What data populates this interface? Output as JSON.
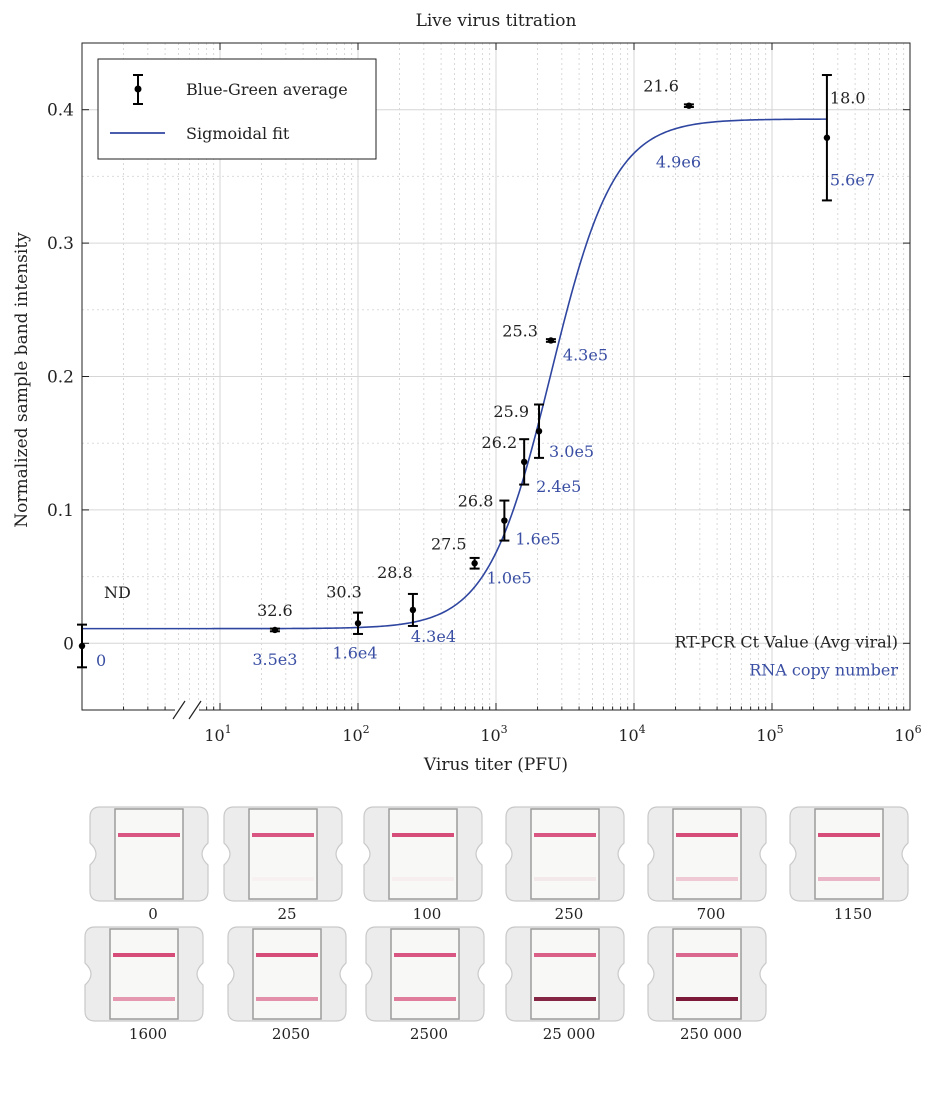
{
  "chart_data": {
    "type": "scatter",
    "title": "Live virus titration",
    "xlabel": "Virus titer (PFU)",
    "ylabel": "Normalized sample band intensity",
    "x_scale": "log",
    "xlim": [
      1,
      1000000
    ],
    "ylim": [
      -0.05,
      0.45
    ],
    "x_axis_break": true,
    "grid": true,
    "x_ticks": [
      {
        "value": 10,
        "base": "10",
        "exp": "1"
      },
      {
        "value": 100,
        "base": "10",
        "exp": "2"
      },
      {
        "value": 1000,
        "base": "10",
        "exp": "3"
      },
      {
        "value": 10000,
        "base": "10",
        "exp": "4"
      },
      {
        "value": 100000,
        "base": "10",
        "exp": "5"
      },
      {
        "value": 1000000,
        "base": "10",
        "exp": "6"
      }
    ],
    "y_ticks": [
      {
        "value": 0,
        "label": "0"
      },
      {
        "value": 0.1,
        "label": "0.1"
      },
      {
        "value": 0.2,
        "label": "0.2"
      },
      {
        "value": 0.3,
        "label": "0.3"
      },
      {
        "value": 0.4,
        "label": "0.4"
      }
    ],
    "legend": {
      "placement": "top-left",
      "entries": [
        {
          "label": "Blue-Green average",
          "marker": "errorbar-point"
        },
        {
          "label": "Sigmoidal fit",
          "marker": "line"
        }
      ]
    },
    "series": [
      {
        "name": "Blue-Green average",
        "points": [
          {
            "x": 1,
            "y": -0.002,
            "err": 0.016,
            "ct": "ND",
            "rna": "0"
          },
          {
            "x": 25,
            "y": 0.01,
            "err": 0.001,
            "ct": "32.6",
            "rna": "3.5e3"
          },
          {
            "x": 100,
            "y": 0.015,
            "err": 0.008,
            "ct": "30.3",
            "rna": "1.6e4"
          },
          {
            "x": 250,
            "y": 0.025,
            "err": 0.012,
            "ct": "28.8",
            "rna": "4.3e4"
          },
          {
            "x": 700,
            "y": 0.06,
            "err": 0.004,
            "ct": "27.5",
            "rna": "1.0e5"
          },
          {
            "x": 1150,
            "y": 0.092,
            "err": 0.015,
            "ct": "26.8",
            "rna": "1.6e5"
          },
          {
            "x": 1600,
            "y": 0.136,
            "err": 0.017,
            "ct": "26.2",
            "rna": "2.4e5"
          },
          {
            "x": 2050,
            "y": 0.159,
            "err": 0.02,
            "ct": "25.9",
            "rna": "3.0e5"
          },
          {
            "x": 2500,
            "y": 0.227,
            "err": 0.001,
            "ct": "25.3",
            "rna": "4.3e5"
          },
          {
            "x": 25000,
            "y": 0.403,
            "err": 0.001,
            "ct": "21.6",
            "rna": "4.9e6"
          },
          {
            "x": 250000,
            "y": 0.379,
            "err": 0.047,
            "ct": "18.0",
            "rna": "5.6e7"
          }
        ]
      },
      {
        "name": "Sigmoidal fit",
        "model": "logistic in log10(x)",
        "bottom": 0.011,
        "top": 0.393,
        "x50": 2500,
        "slope": 1.9
      }
    ],
    "annotations": [
      {
        "text": "RT-PCR Ct Value (Avg viral)",
        "color": "#222222"
      },
      {
        "text": "RNA copy number",
        "color": "#3a4fa3"
      }
    ],
    "colors": {
      "data": "#000000",
      "fit": "#2f46a0",
      "rna_text": "#3a4fa3"
    }
  },
  "strips": [
    {
      "label": "0",
      "t_line": 0.0,
      "c_line": 0.85
    },
    {
      "label": "25",
      "t_line": 0.03,
      "c_line": 0.85
    },
    {
      "label": "100",
      "t_line": 0.05,
      "c_line": 0.9
    },
    {
      "label": "250",
      "t_line": 0.08,
      "c_line": 0.85
    },
    {
      "label": "700",
      "t_line": 0.25,
      "c_line": 0.9
    },
    {
      "label": "1150",
      "t_line": 0.35,
      "c_line": 0.9
    },
    {
      "label": "1600",
      "t_line": 0.5,
      "c_line": 0.9
    },
    {
      "label": "2050",
      "t_line": 0.55,
      "c_line": 0.9
    },
    {
      "label": "2500",
      "t_line": 0.65,
      "c_line": 0.85
    },
    {
      "label": "25 000",
      "t_line": 0.95,
      "c_line": 0.8
    },
    {
      "label": "250 000",
      "t_line": 1.0,
      "c_line": 0.75
    }
  ]
}
